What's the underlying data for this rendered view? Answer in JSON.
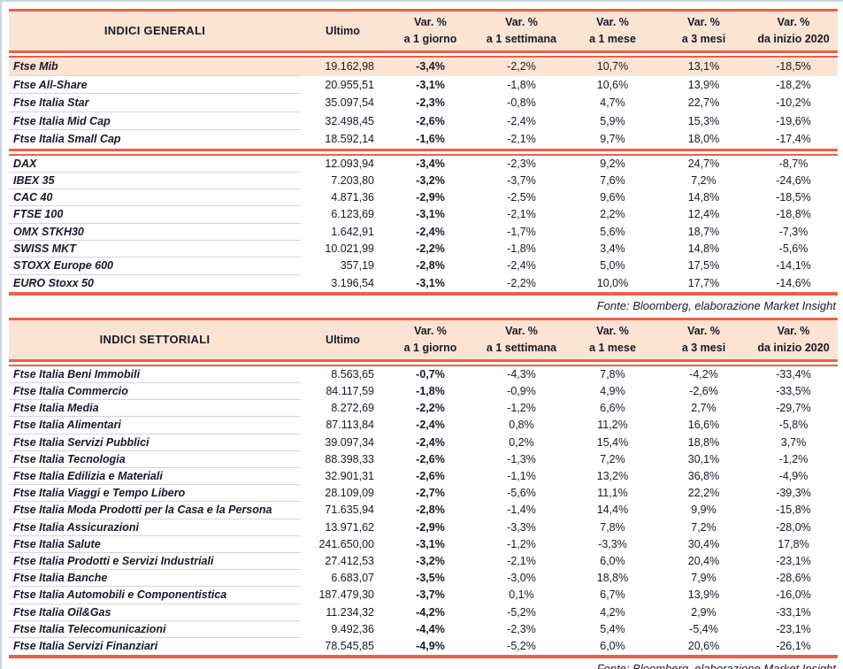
{
  "theme": {
    "accent": "#ec5f48",
    "header_bg": "#fbe4d3",
    "highlight_bg": "#fbe4d3",
    "text": "#191927",
    "separator": "#d6d6d6",
    "frame": "#c9d6e2"
  },
  "columns": [
    {
      "line1": "Ultimo",
      "line2": ""
    },
    {
      "line1": "Var. %",
      "line2": "a 1 giorno"
    },
    {
      "line1": "Var. %",
      "line2": "a 1 settimana"
    },
    {
      "line1": "Var. %",
      "line2": "a 1 mese"
    },
    {
      "line1": "Var. %",
      "line2": "a 3 mesi"
    },
    {
      "line1": "Var. %",
      "line2": "da inizio 2020"
    }
  ],
  "tables": [
    {
      "id": "indici-generali-table",
      "title": "INDICI GENERALI",
      "fonte": "Fonte: Bloomberg, elaborazione Market Insight",
      "groups": [
        {
          "highlight_first": true,
          "rows": [
            [
              "Ftse Mib",
              "19.162,98",
              "-3,4%",
              "-2,2%",
              "10,7%",
              "13,1%",
              "-18,5%"
            ],
            [
              "Ftse All-Share",
              "20.955,51",
              "-3,1%",
              "-1,8%",
              "10,6%",
              "13,9%",
              "-18,2%"
            ],
            [
              "Ftse Italia Star",
              "35.097,54",
              "-2,3%",
              "-0,8%",
              "4,7%",
              "22,7%",
              "-10,2%"
            ],
            [
              "Ftse Italia Mid Cap",
              "32.498,45",
              "-2,6%",
              "-2,4%",
              "5,9%",
              "15,3%",
              "-19,6%"
            ],
            [
              "Ftse Italia Small Cap",
              "18.592,14",
              "-1,6%",
              "-2,1%",
              "9,7%",
              "18,0%",
              "-17,4%"
            ]
          ]
        },
        {
          "highlight_first": false,
          "rows": [
            [
              "DAX",
              "12.093,94",
              "-3,4%",
              "-2,3%",
              "9,2%",
              "24,7%",
              "-8,7%"
            ],
            [
              "IBEX 35",
              "7.203,80",
              "-3,2%",
              "-3,7%",
              "7,6%",
              "7,2%",
              "-24,6%"
            ],
            [
              "CAC 40",
              "4.871,36",
              "-2,9%",
              "-2,5%",
              "9,6%",
              "14,8%",
              "-18,5%"
            ],
            [
              "FTSE 100",
              "6.123,69",
              "-3,1%",
              "-2,1%",
              "2,2%",
              "12,4%",
              "-18,8%"
            ],
            [
              "OMX STKH30",
              "1.642,91",
              "-2,4%",
              "-1,7%",
              "5,6%",
              "18,7%",
              "-7,3%"
            ],
            [
              "SWISS MKT",
              "10.021,99",
              "-2,2%",
              "-1,8%",
              "3,4%",
              "14,8%",
              "-5,6%"
            ],
            [
              "STOXX Europe 600",
              "357,19",
              "-2,8%",
              "-2,4%",
              "5,0%",
              "17,5%",
              "-14,1%"
            ],
            [
              "EURO Stoxx 50",
              "3.196,54",
              "-3,1%",
              "-2,2%",
              "10,0%",
              "17,7%",
              "-14,6%"
            ]
          ]
        }
      ]
    },
    {
      "id": "indici-settoriali-table",
      "title": "INDICI SETTORIALI",
      "fonte": "Fonte: Bloomberg, elaborazione Market Insight",
      "groups": [
        {
          "highlight_first": false,
          "rows": [
            [
              "Ftse Italia Beni Immobili",
              "8.563,65",
              "-0,7%",
              "-4,3%",
              "7,8%",
              "-4,2%",
              "-33,4%"
            ],
            [
              "Ftse Italia Commercio",
              "84.117,59",
              "-1,8%",
              "-0,9%",
              "4,9%",
              "-2,6%",
              "-33,5%"
            ],
            [
              "Ftse Italia Media",
              "8.272,69",
              "-2,2%",
              "-1,2%",
              "6,6%",
              "2,7%",
              "-29,7%"
            ],
            [
              "Ftse Italia Alimentari",
              "87.113,84",
              "-2,4%",
              "0,8%",
              "11,2%",
              "16,6%",
              "-5,8%"
            ],
            [
              "Ftse Italia Servizi Pubblici",
              "39.097,34",
              "-2,4%",
              "0,2%",
              "15,4%",
              "18,8%",
              "3,7%"
            ],
            [
              "Ftse Italia Tecnologia",
              "88.398,33",
              "-2,6%",
              "-1,3%",
              "7,2%",
              "30,1%",
              "-1,2%"
            ],
            [
              "Ftse Italia Edilizia e Materiali",
              "32.901,31",
              "-2,6%",
              "-1,1%",
              "13,2%",
              "36,8%",
              "-4,9%"
            ],
            [
              "Ftse Italia Viaggi e Tempo Libero",
              "28.109,09",
              "-2,7%",
              "-5,6%",
              "11,1%",
              "22,2%",
              "-39,3%"
            ],
            [
              "Ftse Italia Moda Prodotti per la Casa e la Persona",
              "71.635,94",
              "-2,8%",
              "-1,4%",
              "14,4%",
              "9,9%",
              "-15,8%"
            ],
            [
              "Ftse Italia Assicurazioni",
              "13.971,62",
              "-2,9%",
              "-3,3%",
              "7,8%",
              "7,2%",
              "-28,0%"
            ],
            [
              "Ftse Italia Salute",
              "241.650,00",
              "-3,1%",
              "-1,2%",
              "-3,3%",
              "30,4%",
              "17,8%"
            ],
            [
              "Ftse Italia Prodotti e Servizi Industriali",
              "27.412,53",
              "-3,2%",
              "-2,1%",
              "6,0%",
              "20,4%",
              "-23,1%"
            ],
            [
              "Ftse Italia Banche",
              "6.683,07",
              "-3,5%",
              "-3,0%",
              "18,8%",
              "7,9%",
              "-28,6%"
            ],
            [
              "Ftse Italia Automobili e Componentistica",
              "187.479,30",
              "-3,7%",
              "0,1%",
              "6,7%",
              "13,9%",
              "-16,0%"
            ],
            [
              "Ftse Italia Oil&Gas",
              "11.234,32",
              "-4,2%",
              "-5,2%",
              "4,2%",
              "2,9%",
              "-33,1%"
            ],
            [
              "Ftse Italia Telecomunicazioni",
              "9.492,36",
              "-4,4%",
              "-2,3%",
              "5,4%",
              "-5,4%",
              "-23,1%"
            ],
            [
              "Ftse Italia Servizi Finanziari",
              "78.545,85",
              "-4,9%",
              "-5,2%",
              "6,0%",
              "20,6%",
              "-26,1%"
            ]
          ]
        }
      ]
    }
  ]
}
